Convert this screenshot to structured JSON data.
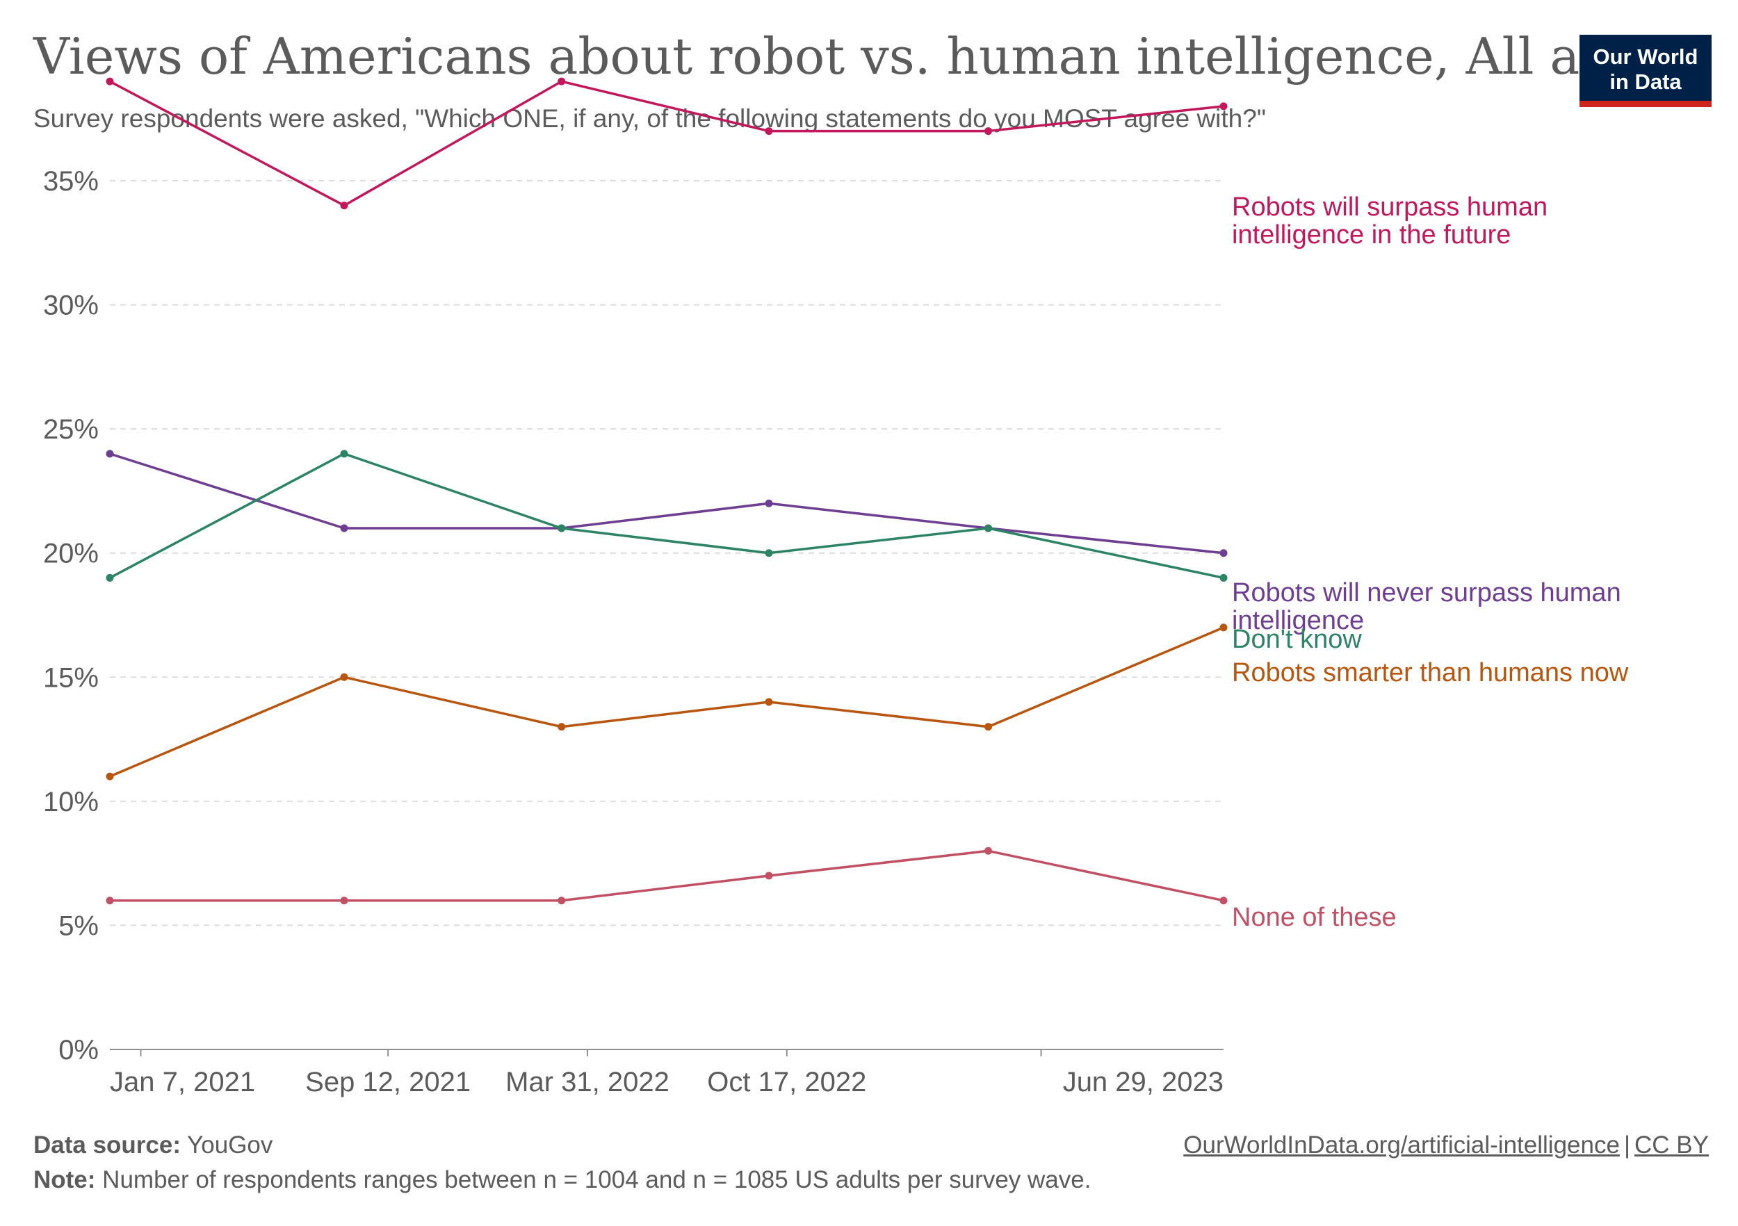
{
  "header": {
    "title": "Views of Americans about robot vs. human intelligence, All adults",
    "subtitle": "Survey respondents were asked, \"Which ONE, if any, of the following statements do you MOST agree with?\"",
    "logo_line1": "Our World",
    "logo_line2": "in Data"
  },
  "footer": {
    "source_label": "Data source:",
    "source_value": "YouGov",
    "note_label": "Note:",
    "note_value": "Number of respondents ranges between n = 1004 and n = 1085 US adults per survey wave.",
    "link_text": "OurWorldInData.org/artificial-intelligence",
    "separator": "|",
    "license": "CC BY"
  },
  "colors": {
    "grid": "#dddddd",
    "axis": "#8f8f8f",
    "tick_text": "#5b5b5b",
    "logo_bg": "#002147",
    "logo_accent": "#ce261e"
  },
  "chart_data": {
    "type": "line",
    "title": "Views of Americans about robot vs. human intelligence, All adults",
    "x": [
      "2020-12-07",
      "2021-07-30",
      "2022-03-05",
      "2022-09-29",
      "2023-05-07",
      "2023-12-29"
    ],
    "x_ticks": [
      "Jan 7, 2021",
      "Sep 12, 2021",
      "Mar 31, 2022",
      "Oct 17, 2022",
      "Jun 29, 2023"
    ],
    "x_tick_dates": [
      "2021-01-07",
      "2021-09-12",
      "2022-03-31",
      "2022-10-17",
      "2023-06-29"
    ],
    "xlim": [
      "2020-12-07",
      "2023-12-29"
    ],
    "y_ticks": [
      "0%",
      "5%",
      "10%",
      "15%",
      "20%",
      "25%",
      "30%",
      "35%"
    ],
    "y_tick_values": [
      0,
      5,
      10,
      15,
      20,
      25,
      30,
      35
    ],
    "ylim": [
      0,
      39
    ],
    "grid": "horizontal dashed",
    "legend": "labels at right end of lines",
    "series": [
      {
        "name": "Robots will surpass human intelligence in the future",
        "label_lines": [
          "Robots will surpass human",
          "intelligence in the future"
        ],
        "color": "#c2185b",
        "values": [
          39,
          34,
          39,
          37,
          37,
          38
        ]
      },
      {
        "name": "Robots will never surpass human intelligence",
        "label_lines": [
          "Robots will never surpass human",
          "intelligence"
        ],
        "color": "#6d3e91",
        "values": [
          24,
          21,
          21,
          22,
          21,
          20
        ]
      },
      {
        "name": "Don't know",
        "label_lines": [
          "Don't know"
        ],
        "color": "#2c8465",
        "values": [
          19,
          24,
          21,
          20,
          21,
          19
        ]
      },
      {
        "name": "Robots smarter than humans now",
        "label_lines": [
          "Robots smarter than humans now"
        ],
        "color": "#b8560f",
        "values": [
          11,
          15,
          13,
          14,
          13,
          17
        ]
      },
      {
        "name": "None of these",
        "label_lines": [
          "None of these"
        ],
        "color": "#c15065",
        "values": [
          6,
          6,
          6,
          7,
          8,
          6
        ]
      }
    ]
  }
}
